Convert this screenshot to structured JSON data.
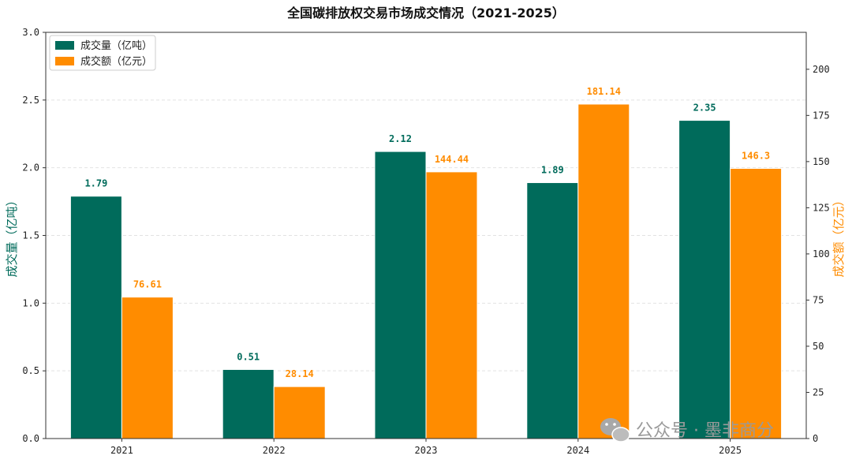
{
  "chart_data": {
    "type": "bar",
    "title": "全国碳排放权交易市场成交情况（2021-2025）",
    "categories": [
      "2021",
      "2022",
      "2023",
      "2024",
      "2025"
    ],
    "series": [
      {
        "name": "成交量（亿吨）",
        "axis": "left",
        "color": "#006b5b",
        "values": [
          1.79,
          0.51,
          2.12,
          1.89,
          2.35
        ]
      },
      {
        "name": "成交额（亿元）",
        "axis": "right",
        "color": "#ff8c00",
        "values": [
          76.61,
          28.14,
          144.44,
          181.14,
          146.3
        ]
      }
    ],
    "ylabel": "成交量（亿吨）",
    "y2label": "成交额（亿元）",
    "ylim": [
      0,
      3.0
    ],
    "y2lim": [
      0,
      220
    ],
    "yticks": [
      "0.0",
      "0.5",
      "1.0",
      "1.5",
      "2.0",
      "2.5",
      "3.0"
    ],
    "y2ticks": [
      "0",
      "25",
      "50",
      "75",
      "100",
      "125",
      "150",
      "175",
      "200"
    ],
    "grid": "horizontal-dashed",
    "legend": "top-left"
  },
  "watermark": "公众号 · 墨非商分",
  "watermark_icon": "wechat-icon"
}
